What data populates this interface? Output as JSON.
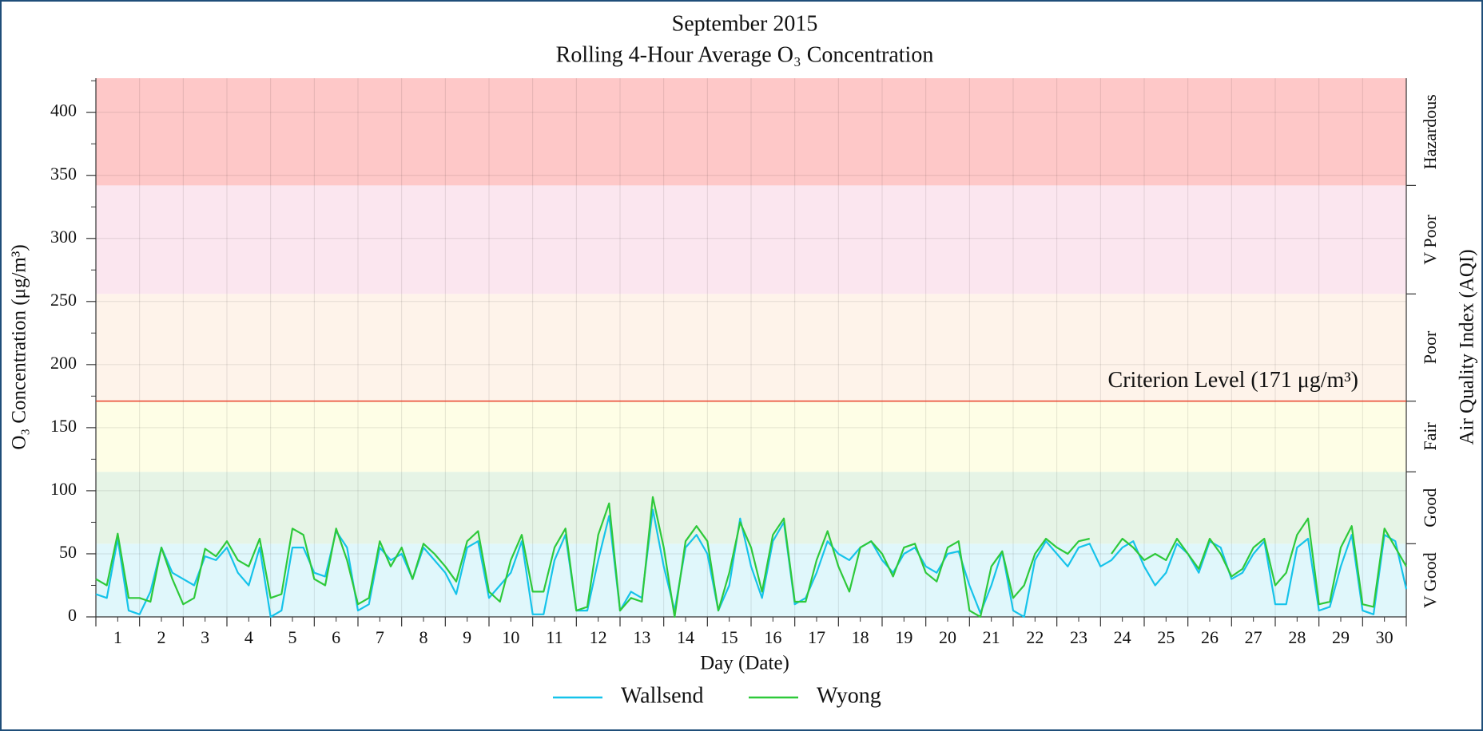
{
  "chart_data": {
    "type": "line",
    "title": "September 2015",
    "subtitle": "Rolling 4-Hour Average O₃ Concentration",
    "xlabel": "Day (Date)",
    "ylabel": "O₃ Concentration (μg/m³)",
    "y2label": "Air Quality Index (AQI)",
    "xlim": [
      1,
      31
    ],
    "xticks": [
      {
        "value": 1.5,
        "label": "1"
      },
      {
        "value": 2.5,
        "label": "2"
      },
      {
        "value": 3.5,
        "label": "3"
      },
      {
        "value": 4.5,
        "label": "4"
      },
      {
        "value": 5.5,
        "label": "5"
      },
      {
        "value": 6.5,
        "label": "6"
      },
      {
        "value": 7.5,
        "label": "7"
      },
      {
        "value": 8.5,
        "label": "8"
      },
      {
        "value": 9.5,
        "label": "9"
      },
      {
        "value": 10.5,
        "label": "10"
      },
      {
        "value": 11.5,
        "label": "11"
      },
      {
        "value": 12.5,
        "label": "12"
      },
      {
        "value": 13.5,
        "label": "13"
      },
      {
        "value": 14.5,
        "label": "14"
      },
      {
        "value": 15.5,
        "label": "15"
      },
      {
        "value": 16.5,
        "label": "16"
      },
      {
        "value": 17.5,
        "label": "17"
      },
      {
        "value": 18.5,
        "label": "18"
      },
      {
        "value": 19.5,
        "label": "19"
      },
      {
        "value": 20.5,
        "label": "20"
      },
      {
        "value": 21.5,
        "label": "21"
      },
      {
        "value": 22.5,
        "label": "22"
      },
      {
        "value": 23.5,
        "label": "23"
      },
      {
        "value": 24.5,
        "label": "24"
      },
      {
        "value": 25.5,
        "label": "25"
      },
      {
        "value": 26.5,
        "label": "26"
      },
      {
        "value": 27.5,
        "label": "27"
      },
      {
        "value": 28.5,
        "label": "28"
      },
      {
        "value": 29.5,
        "label": "29"
      },
      {
        "value": 30.5,
        "label": "30"
      }
    ],
    "xgrid": [
      1,
      2,
      3,
      4,
      5,
      6,
      7,
      8,
      9,
      10,
      11,
      12,
      13,
      14,
      15,
      16,
      17,
      18,
      19,
      20,
      21,
      22,
      23,
      24,
      25,
      26,
      27,
      28,
      29,
      30,
      31
    ],
    "ylim": [
      0,
      427
    ],
    "yticks": [
      0,
      50,
      100,
      150,
      200,
      250,
      300,
      350,
      400
    ],
    "grid": true,
    "legend": "bottom",
    "bands": [
      {
        "label": "V Good",
        "from": 0,
        "color": "#e0f7fb"
      },
      {
        "label": "Good",
        "from": 58,
        "color": "#e6f4e6"
      },
      {
        "label": "Fair",
        "from": 115,
        "color": "#fefee6"
      },
      {
        "label": "Poor",
        "from": 171,
        "color": "#fef3ea"
      },
      {
        "label": "V Poor",
        "from": 256,
        "color": "#fbe6ef"
      },
      {
        "label": "Hazardous",
        "from": 342,
        "color": "#fec8c8"
      }
    ],
    "criterion": {
      "value": 171,
      "label": "Criterion Level (171 μg/m³)",
      "color": "#e8402a"
    },
    "x": [
      1,
      1.25,
      1.5,
      1.75,
      2,
      2.25,
      2.5,
      2.75,
      3,
      3.25,
      3.5,
      3.75,
      4,
      4.25,
      4.5,
      4.75,
      5,
      5.25,
      5.5,
      5.75,
      6,
      6.25,
      6.5,
      6.75,
      7,
      7.25,
      7.5,
      7.75,
      8,
      8.25,
      8.5,
      8.75,
      9,
      9.25,
      9.5,
      9.75,
      10,
      10.25,
      10.5,
      10.75,
      11,
      11.25,
      11.5,
      11.75,
      12,
      12.25,
      12.5,
      12.75,
      13,
      13.25,
      13.5,
      13.75,
      14,
      14.25,
      14.5,
      14.75,
      15,
      15.25,
      15.5,
      15.75,
      16,
      16.25,
      16.5,
      16.75,
      17,
      17.25,
      17.5,
      17.75,
      18,
      18.25,
      18.5,
      18.75,
      19,
      19.25,
      19.5,
      19.75,
      20,
      20.25,
      20.5,
      20.75,
      21,
      21.25,
      21.5,
      21.75,
      22,
      22.25,
      22.5,
      22.75,
      23,
      23.25,
      23.5,
      23.75,
      24,
      24.25,
      24.5,
      24.75,
      25,
      25.25,
      25.5,
      25.75,
      26,
      26.25,
      26.5,
      26.75,
      27,
      27.25,
      27.5,
      27.75,
      28,
      28.25,
      28.5,
      28.75,
      29,
      29.25,
      29.5,
      29.75,
      30,
      30.25,
      30.5,
      30.75,
      31
    ],
    "series": [
      {
        "name": "Wallsend",
        "color": "#16c3ea",
        "values": [
          18,
          15,
          62,
          5,
          2,
          20,
          55,
          35,
          30,
          25,
          48,
          45,
          55,
          35,
          25,
          55,
          0,
          5,
          55,
          55,
          35,
          32,
          68,
          55,
          5,
          10,
          55,
          45,
          50,
          30,
          55,
          45,
          35,
          18,
          55,
          60,
          15,
          25,
          35,
          60,
          2,
          2,
          45,
          65,
          5,
          5,
          45,
          80,
          5,
          20,
          15,
          85,
          40,
          5,
          55,
          65,
          50,
          5,
          25,
          78,
          40,
          15,
          60,
          75,
          10,
          15,
          35,
          60,
          50,
          45,
          55,
          60,
          45,
          35,
          50,
          55,
          40,
          35,
          50,
          52,
          25,
          3,
          25,
          52,
          5,
          0,
          45,
          60,
          50,
          40,
          55,
          58,
          40,
          45,
          55,
          60,
          40,
          25,
          35,
          58,
          50,
          35,
          60,
          55,
          30,
          35,
          50,
          60,
          10,
          10,
          55,
          62,
          5,
          8,
          40,
          65,
          5,
          2,
          65,
          60,
          22
        ]
      },
      {
        "name": "Wyong",
        "color": "#2ec93a",
        "values": [
          30,
          25,
          66,
          15,
          15,
          12,
          55,
          30,
          10,
          15,
          54,
          48,
          60,
          45,
          40,
          62,
          15,
          18,
          70,
          65,
          30,
          25,
          70,
          45,
          10,
          15,
          60,
          40,
          55,
          30,
          58,
          50,
          40,
          28,
          60,
          68,
          20,
          12,
          45,
          65,
          20,
          20,
          55,
          70,
          5,
          8,
          65,
          90,
          5,
          15,
          12,
          95,
          55,
          0,
          60,
          72,
          60,
          5,
          35,
          75,
          55,
          20,
          65,
          78,
          12,
          12,
          45,
          68,
          40,
          20,
          55,
          60,
          50,
          32,
          55,
          58,
          35,
          28,
          55,
          60,
          5,
          0,
          40,
          52,
          15,
          25,
          50,
          62,
          55,
          50,
          60,
          62,
          null,
          50,
          62,
          55,
          45,
          50,
          45,
          62,
          50,
          38,
          62,
          50,
          32,
          38,
          55,
          62,
          25,
          35,
          65,
          78,
          10,
          12,
          55,
          72,
          10,
          8,
          70,
          55,
          40
        ]
      }
    ]
  }
}
